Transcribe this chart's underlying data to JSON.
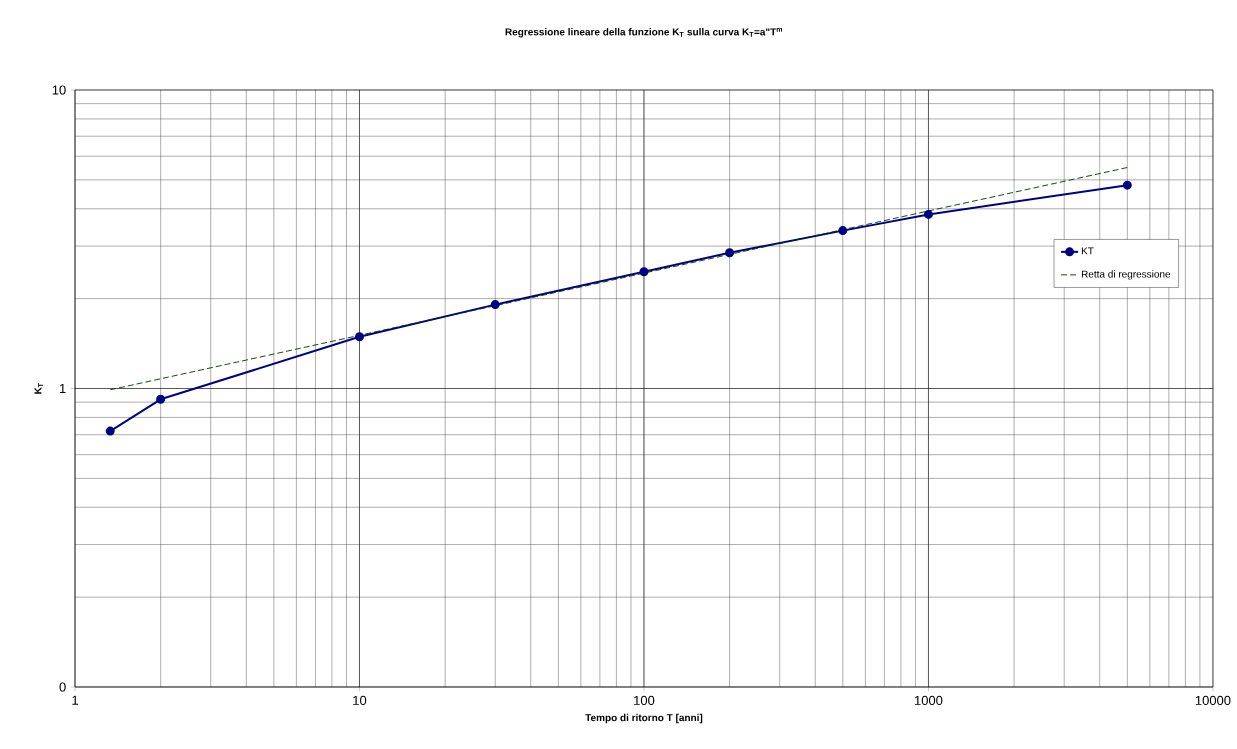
{
  "chart_data": {
    "type": "line",
    "title": "Regressione lineare della funzione K$_{T}$ sulla curva K$_{T}$=a\"T$^{m}$",
    "xlabel": "Tempo di ritorno T [anni]",
    "ylabel": "K$_{T}$",
    "log": "xy",
    "grid": true,
    "legend": "right",
    "xlim": [
      1,
      10000
    ],
    "ylim": [
      0.1,
      10
    ],
    "xticks": [
      1,
      10,
      100,
      1000,
      10000
    ],
    "yticks": [
      {
        "value": 0.1,
        "label": "0"
      },
      1,
      10
    ],
    "series": [
      {
        "name": "KT",
        "color": "#000080",
        "marker": "circle",
        "line_style": "solid",
        "x": [
          1.33,
          2,
          10,
          30,
          100,
          200,
          500,
          1000,
          5000
        ],
        "values": [
          0.72,
          0.92,
          1.49,
          1.91,
          2.46,
          2.85,
          3.38,
          3.83,
          4.8
        ]
      },
      {
        "name": "Retta di regressione",
        "color": "#003300",
        "marker": "none",
        "line_style": "dashed",
        "x": [
          1.33,
          5000
        ],
        "values": [
          0.99,
          5.5
        ]
      }
    ]
  }
}
